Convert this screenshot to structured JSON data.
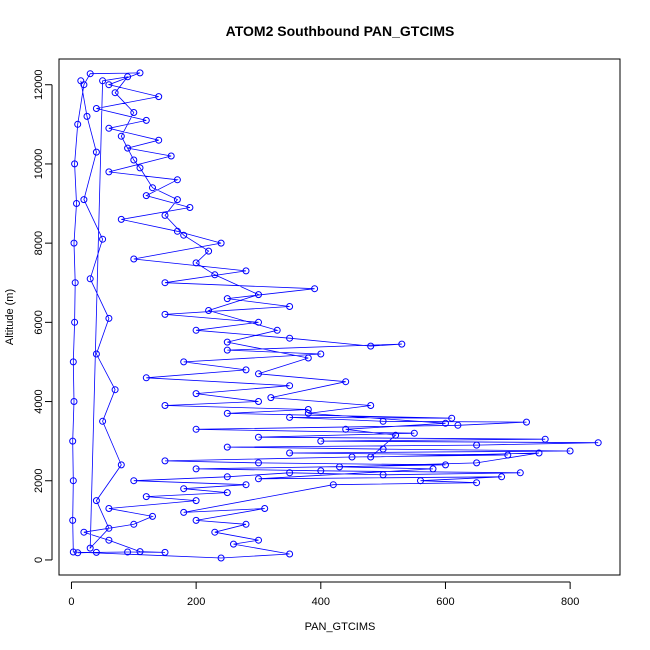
{
  "chart_data": {
    "type": "scatter",
    "title": "ATOM2 Southbound PAN_GTCIMS",
    "xlabel": "PAN_GTCIMS",
    "ylabel": "Altitude (m)",
    "xlim": [
      -20,
      880
    ],
    "ylim": [
      -380,
      12650
    ],
    "xticks": [
      0,
      200,
      400,
      600,
      800
    ],
    "yticks": [
      0,
      2000,
      4000,
      6000,
      8000,
      10000,
      12000
    ],
    "grid": false,
    "legend": "none",
    "series": [
      {
        "marker": "open-circle",
        "line": true,
        "color": "#0000ff",
        "points": [
          [
            10,
            180
          ],
          [
            40,
            190
          ],
          [
            90,
            200
          ],
          [
            150,
            190
          ],
          [
            110,
            210
          ],
          [
            60,
            500
          ],
          [
            20,
            700
          ],
          [
            100,
            900
          ],
          [
            130,
            1100
          ],
          [
            60,
            1300
          ],
          [
            200,
            1500
          ],
          [
            120,
            1600
          ],
          [
            250,
            1700
          ],
          [
            180,
            1800
          ],
          [
            280,
            1900
          ],
          [
            100,
            2000
          ],
          [
            250,
            2100
          ],
          [
            350,
            2200
          ],
          [
            500,
            2150
          ],
          [
            720,
            2200
          ],
          [
            400,
            2250
          ],
          [
            200,
            2300
          ],
          [
            600,
            2400
          ],
          [
            300,
            2450
          ],
          [
            150,
            2500
          ],
          [
            450,
            2600
          ],
          [
            700,
            2650
          ],
          [
            350,
            2700
          ],
          [
            800,
            2750
          ],
          [
            500,
            2800
          ],
          [
            250,
            2850
          ],
          [
            650,
            2900
          ],
          [
            845,
            2960
          ],
          [
            400,
            3000
          ],
          [
            760,
            3050
          ],
          [
            300,
            3100
          ],
          [
            550,
            3200
          ],
          [
            200,
            3300
          ],
          [
            620,
            3400
          ],
          [
            730,
            3480
          ],
          [
            500,
            3500
          ],
          [
            350,
            3600
          ],
          [
            610,
            3580
          ],
          [
            250,
            3700
          ],
          [
            380,
            3800
          ],
          [
            150,
            3900
          ],
          [
            300,
            4000
          ],
          [
            200,
            4200
          ],
          [
            350,
            4400
          ],
          [
            120,
            4600
          ],
          [
            280,
            4800
          ],
          [
            180,
            5000
          ],
          [
            400,
            5200
          ],
          [
            250,
            5300
          ],
          [
            530,
            5450
          ],
          [
            480,
            5400
          ],
          [
            350,
            5600
          ],
          [
            200,
            5800
          ],
          [
            300,
            6000
          ],
          [
            150,
            6200
          ],
          [
            350,
            6400
          ],
          [
            250,
            6600
          ],
          [
            390,
            6850
          ],
          [
            150,
            7000
          ],
          [
            280,
            7300
          ],
          [
            100,
            7600
          ],
          [
            240,
            8000
          ],
          [
            170,
            8300
          ],
          [
            80,
            8600
          ],
          [
            190,
            8900
          ],
          [
            120,
            9200
          ],
          [
            170,
            9600
          ],
          [
            60,
            9800
          ],
          [
            160,
            10200
          ],
          [
            90,
            10400
          ],
          [
            140,
            10600
          ],
          [
            60,
            10900
          ],
          [
            120,
            11100
          ],
          [
            40,
            11400
          ],
          [
            140,
            11700
          ],
          [
            60,
            12000
          ],
          [
            110,
            12300
          ],
          [
            30,
            12280
          ],
          [
            20,
            12000
          ],
          [
            10,
            11000
          ],
          [
            5,
            10000
          ],
          [
            8,
            9000
          ],
          [
            4,
            8000
          ],
          [
            6,
            7000
          ],
          [
            5,
            6000
          ],
          [
            3,
            5000
          ],
          [
            4,
            4000
          ],
          [
            2,
            3000
          ],
          [
            3,
            2000
          ],
          [
            2,
            1000
          ],
          [
            3,
            200
          ],
          [
            240,
            50
          ],
          [
            350,
            150
          ],
          [
            260,
            400
          ],
          [
            300,
            500
          ],
          [
            230,
            700
          ],
          [
            280,
            900
          ],
          [
            200,
            1000
          ],
          [
            310,
            1300
          ],
          [
            180,
            1200
          ],
          [
            420,
            1900
          ],
          [
            650,
            1950
          ],
          [
            560,
            2000
          ],
          [
            690,
            2100
          ],
          [
            300,
            2050
          ],
          [
            580,
            2300
          ],
          [
            430,
            2350
          ],
          [
            650,
            2450
          ],
          [
            750,
            2700
          ],
          [
            480,
            2600
          ],
          [
            520,
            3150
          ],
          [
            440,
            3300
          ],
          [
            600,
            3450
          ],
          [
            380,
            3700
          ],
          [
            480,
            3900
          ],
          [
            320,
            4100
          ],
          [
            440,
            4500
          ],
          [
            300,
            4700
          ],
          [
            380,
            5100
          ],
          [
            250,
            5500
          ],
          [
            330,
            5800
          ],
          [
            220,
            6300
          ],
          [
            300,
            6700
          ],
          [
            230,
            7200
          ],
          [
            200,
            7500
          ],
          [
            220,
            7800
          ],
          [
            180,
            8200
          ],
          [
            150,
            8700
          ],
          [
            170,
            9100
          ],
          [
            130,
            9400
          ],
          [
            110,
            9900
          ],
          [
            100,
            10100
          ],
          [
            80,
            10700
          ],
          [
            100,
            11300
          ],
          [
            70,
            11800
          ],
          [
            90,
            12200
          ],
          [
            50,
            12100
          ],
          [
            30,
            300
          ],
          [
            60,
            800
          ],
          [
            40,
            1500
          ],
          [
            80,
            2400
          ],
          [
            50,
            3500
          ],
          [
            70,
            4300
          ],
          [
            40,
            5200
          ],
          [
            60,
            6100
          ],
          [
            30,
            7100
          ],
          [
            50,
            8100
          ],
          [
            20,
            9100
          ],
          [
            40,
            10300
          ],
          [
            25,
            11200
          ],
          [
            15,
            12100
          ]
        ]
      }
    ]
  }
}
